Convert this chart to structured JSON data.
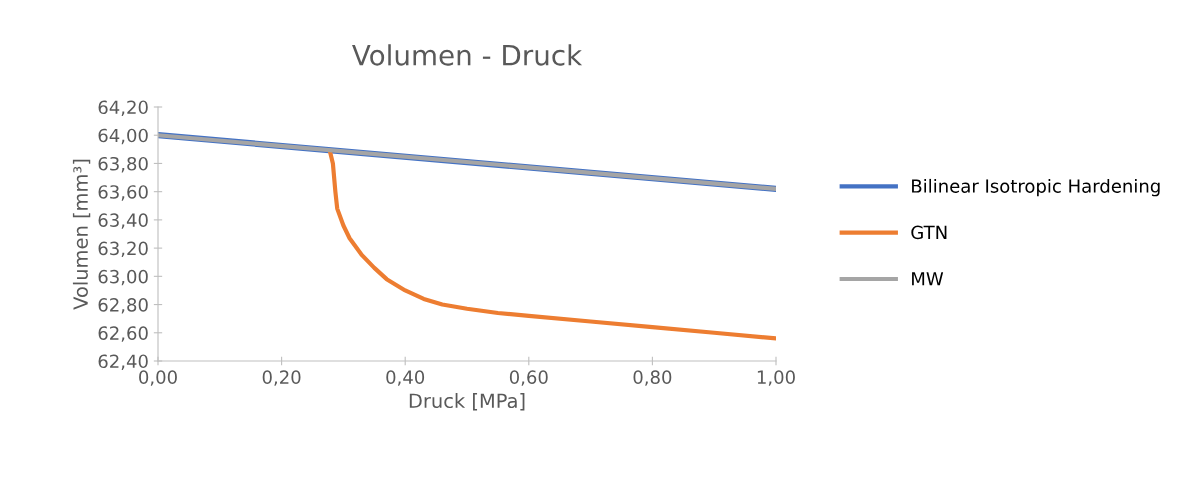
{
  "chart_data": {
    "type": "line",
    "title": "Volumen - Druck",
    "xlabel": "Druck [MPa]",
    "ylabel": "Volumen [mm³]",
    "xlim": [
      0,
      1
    ],
    "xticks": [
      {
        "value": 0,
        "label": "0,00"
      },
      {
        "value": 0.2,
        "label": "0,20"
      },
      {
        "value": 0.4,
        "label": "0,40"
      },
      {
        "value": 0.6,
        "label": "0,60"
      },
      {
        "value": 0.8,
        "label": "0,80"
      },
      {
        "value": 1,
        "label": "1,00"
      }
    ],
    "ylim": [
      62.4,
      64.2
    ],
    "yticks": [
      {
        "value": 62.4,
        "label": "62,40"
      },
      {
        "value": 62.6,
        "label": "62,60"
      },
      {
        "value": 62.8,
        "label": "62,80"
      },
      {
        "value": 63.0,
        "label": "63,00"
      },
      {
        "value": 63.2,
        "label": "63,20"
      },
      {
        "value": 63.4,
        "label": "63,40"
      },
      {
        "value": 63.6,
        "label": "63,60"
      },
      {
        "value": 63.8,
        "label": "63,80"
      },
      {
        "value": 64.0,
        "label": "64,00"
      },
      {
        "value": 64.2,
        "label": "64,20"
      }
    ],
    "grid": false,
    "legend": "right",
    "marker": "none",
    "line_style": "solid",
    "series": [
      {
        "name": "Bilinear Isotropic Hardening",
        "color": "#4472c4",
        "x": [
          0,
          1
        ],
        "values": [
          64.0,
          63.62
        ]
      },
      {
        "name": "GTN",
        "color": "#ed7d31",
        "x": [
          0.278,
          0.283,
          0.287,
          0.29,
          0.3,
          0.31,
          0.33,
          0.35,
          0.37,
          0.4,
          0.43,
          0.46,
          0.5,
          0.55,
          0.6,
          0.7,
          0.8,
          0.9,
          1.0
        ],
        "values": [
          63.89,
          63.8,
          63.6,
          63.48,
          63.36,
          63.27,
          63.15,
          63.06,
          62.98,
          62.9,
          62.84,
          62.8,
          62.77,
          62.74,
          62.72,
          62.68,
          62.64,
          62.6,
          62.56
        ]
      },
      {
        "name": "MW",
        "color": "#a5a5a5",
        "x": [
          0,
          1
        ],
        "values": [
          64.0,
          63.62
        ]
      }
    ]
  }
}
